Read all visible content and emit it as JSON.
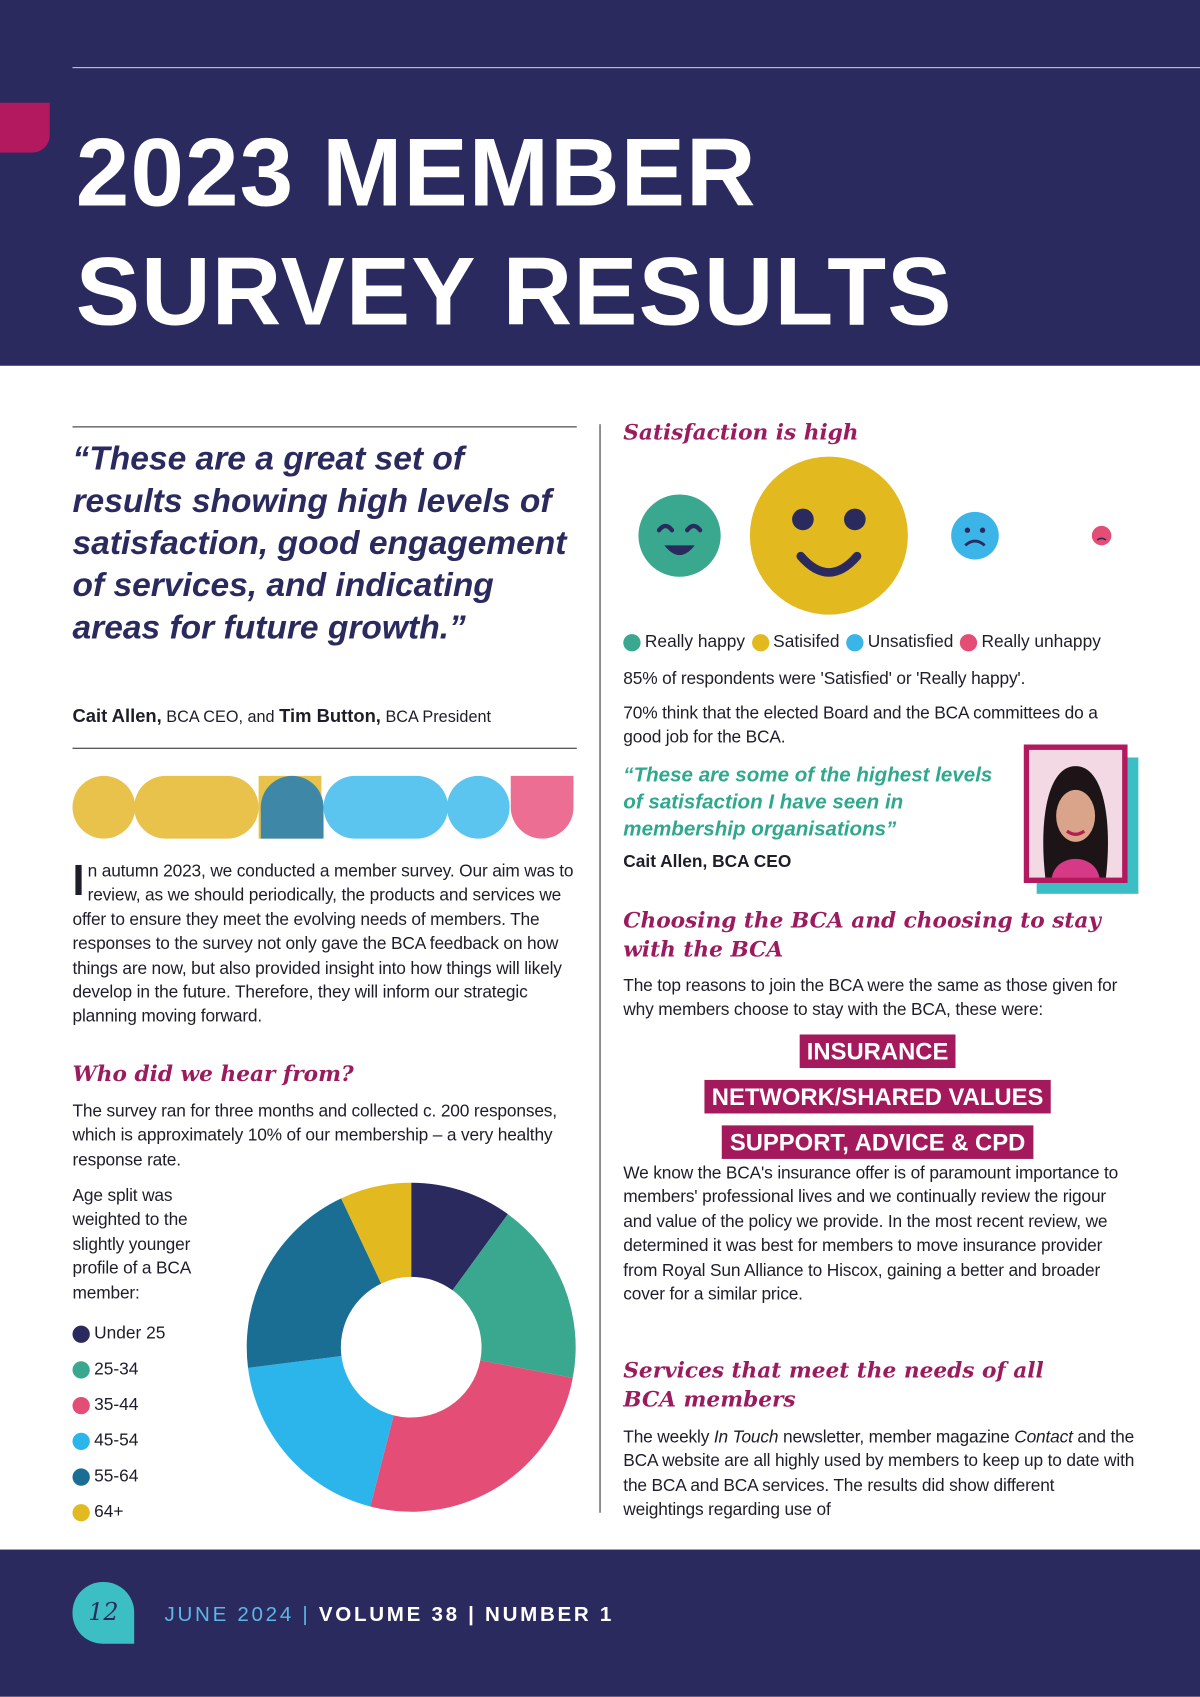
{
  "header": {
    "title_lines": [
      "2023 MEMBER",
      "SURVEY RESULTS"
    ]
  },
  "quote": {
    "text": "“These are a great set of results showing high levels of satisfaction, good engagement of services, and indicating areas for future growth.”",
    "attribution": [
      {
        "name": "Cait Allen,",
        "role": "BCA CEO, and"
      },
      {
        "name": "Tim Button,",
        "role": "BCA President"
      }
    ]
  },
  "intro": "In autumn 2023, we conducted a member survey. Our aim was to review, as we should periodically, the products and services we offer to ensure they meet the evolving needs of members. The responses to the survey not only gave the BCA feedback on how things are now, but also provided insight into how things will likely develop in the future. Therefore, they will inform our strategic planning moving forward.",
  "who": {
    "heading": "Who did we hear from?",
    "text": "The survey ran for three months and collected c. 200 responses, which is approximately 10% of our membership – a very healthy response rate.",
    "age_note": "Age split was weighted to the slightly younger profile of a BCA member:"
  },
  "chart_data": {
    "type": "pie",
    "categories": [
      "Under 25",
      "25-34",
      "35-44",
      "45-54",
      "55-64",
      "64+"
    ],
    "values": [
      10,
      18,
      26,
      19,
      20,
      7
    ],
    "colors": [
      "#2b2a5e",
      "#3aa88f",
      "#e44d75",
      "#2bb5ea",
      "#1b6e93",
      "#e3b920"
    ]
  },
  "satisfaction": {
    "heading": "Satisfaction is high",
    "legend": [
      "Really happy",
      "Satisifed",
      "Unsatisfied",
      "Really unhappy"
    ],
    "stats": [
      "85% of respondents were 'Satisfied' or 'Really happy'.",
      "70% think that the elected Board and the BCA committees do a good job for the BCA."
    ],
    "quote": "“These are some of the highest levels of satisfaction I have seen in membership organisations”",
    "quote_author": "Cait Allen, BCA CEO"
  },
  "choosing": {
    "heading": "Choosing the BCA and choosing to stay with the BCA",
    "text": "The top reasons to join the BCA were the same as those given for why members choose to stay with the BCA, these were:",
    "reasons": [
      "INSURANCE",
      "NETWORK/SHARED VALUES",
      "SUPPORT, ADVICE & CPD"
    ],
    "text2": "We know the BCA's insurance offer is of paramount importance to members' professional lives and we continually review the rigour and value of the policy we provide. In the most recent review, we determined it was best for members to move insurance provider from Royal Sun Alliance to Hiscox, gaining a better and broader cover for a similar price."
  },
  "services": {
    "heading": "Services that meet the needs of all BCA members",
    "text": [
      "The weekly ",
      "In Touch",
      " newsletter, member magazine ",
      "Contact",
      " and the BCA website are all highly used by members to keep up to date with the BCA and BCA services. The results did show different weightings regarding use of"
    ]
  },
  "footer": {
    "page": "12",
    "issue": "JUNE 2024 | ",
    "volume": "VOLUME 38 | NUMBER 1"
  }
}
